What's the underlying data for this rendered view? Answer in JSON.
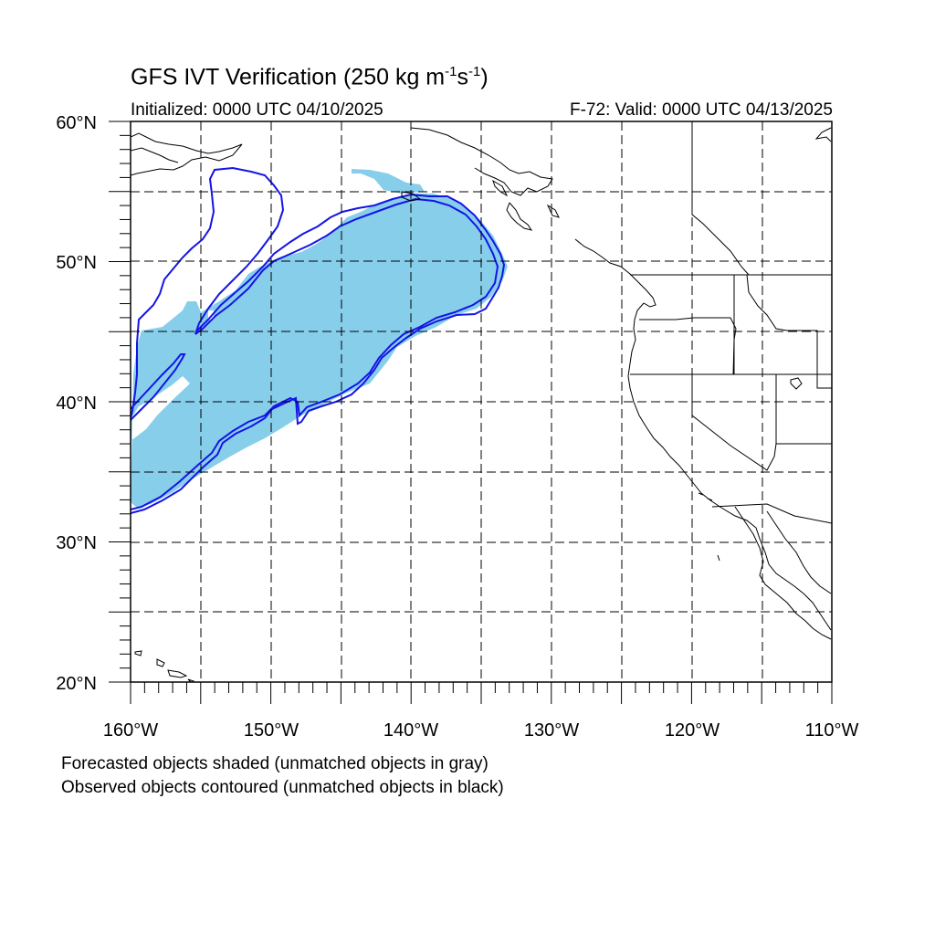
{
  "title": {
    "main": "GFS IVT Verification (250 kg m",
    "exp1": "-1",
    "mid": "s",
    "exp2": "-1",
    "close": ")"
  },
  "initialized": "Initialized: 0000 UTC 04/10/2025",
  "valid": "F-72: Valid: 0000 UTC 04/13/2025",
  "lat_labels": [
    "60°N",
    "50°N",
    "40°N",
    "30°N",
    "20°N"
  ],
  "lon_labels": [
    "160°W",
    "150°W",
    "140°W",
    "130°W",
    "120°W",
    "110°W"
  ],
  "legend": {
    "line1": "Forecasted objects shaded (unmatched objects in gray)",
    "line2": "Observed objects contoured (unmatched objects in black)"
  },
  "colors": {
    "forecast_fill": "#87ceeb",
    "observed_contour": "#1010e0",
    "coastline": "#000000",
    "grid": "#000000"
  },
  "map_extent": {
    "lon_min": -160,
    "lon_max": -110,
    "lat_min": 20,
    "lat_max": 60
  }
}
